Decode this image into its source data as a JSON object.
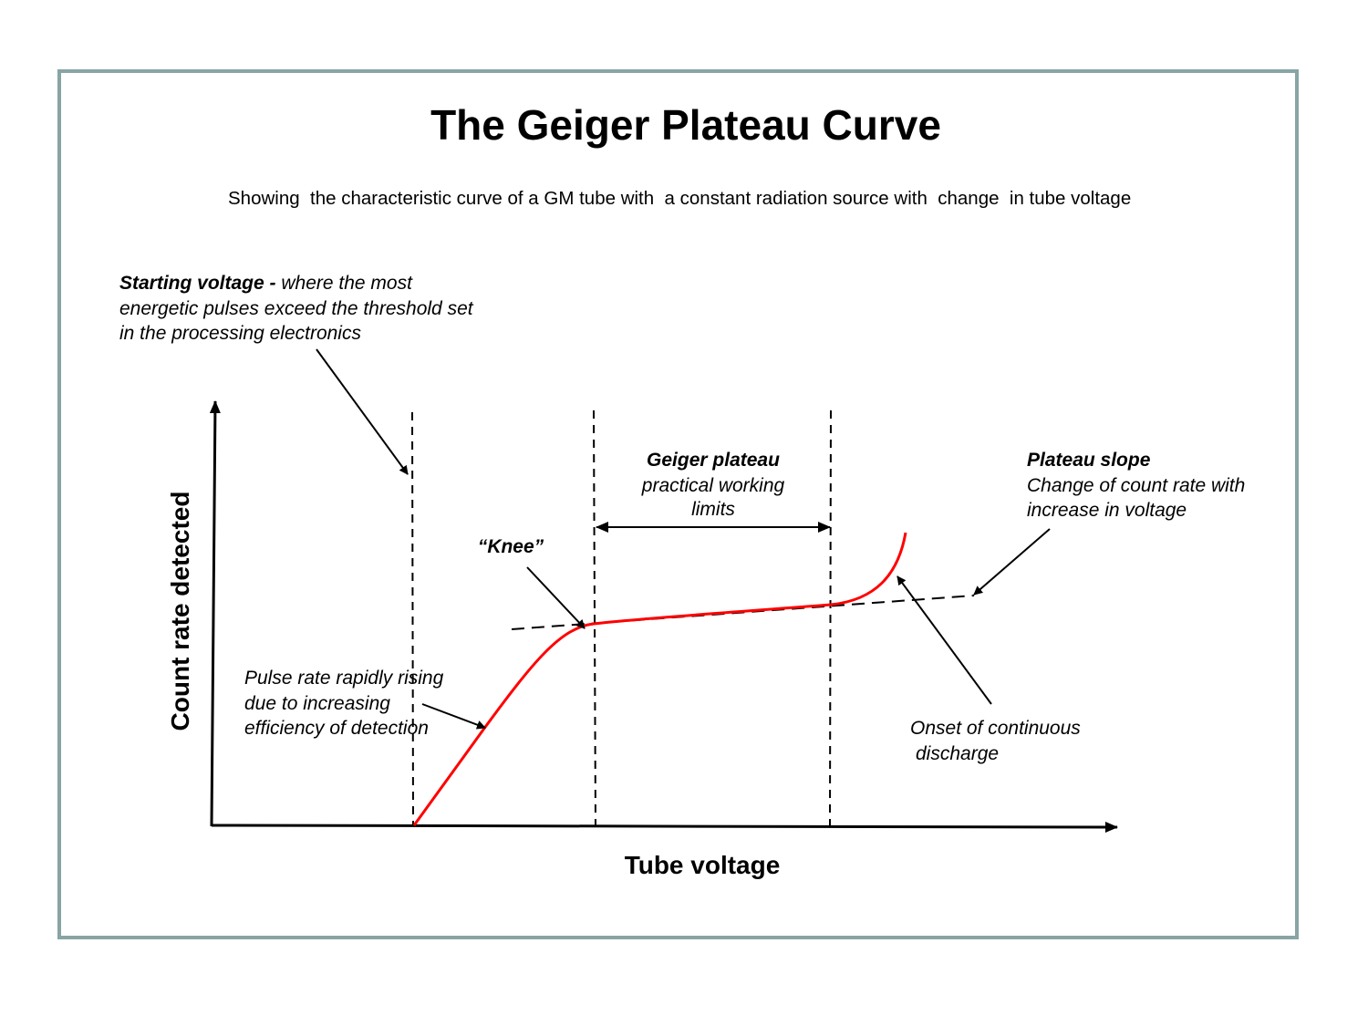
{
  "title": "The Geiger Plateau Curve",
  "subtitle": "Showing  the characteristic curve of a GM tube with  a constant radiation source with  change  in tube voltage",
  "axes": {
    "x_label": "Tube voltage",
    "y_label": "Count rate detected"
  },
  "annotations": {
    "starting_voltage": {
      "bold": "Starting voltage -",
      "line1": " where the most",
      "line2": "energetic pulses exceed the threshold set",
      "line3": "in the processing electronics"
    },
    "geiger_plateau": {
      "bold": "Geiger plateau",
      "line2": "practical working",
      "line3": "limits"
    },
    "plateau_slope": {
      "bold": "Plateau slope",
      "line2": "Change of count rate with",
      "line3": "increase in voltage"
    },
    "knee": "“Knee”",
    "pulse_rate": {
      "line1": "Pulse rate rapidly rising",
      "line2": "due to increasing",
      "line3": "efficiency of detection"
    },
    "onset": {
      "line1": "Onset of continuous",
      "line2": "discharge"
    }
  },
  "colors": {
    "curve": "#ff0000",
    "frame": "#88a4a4",
    "ink": "#000000"
  }
}
